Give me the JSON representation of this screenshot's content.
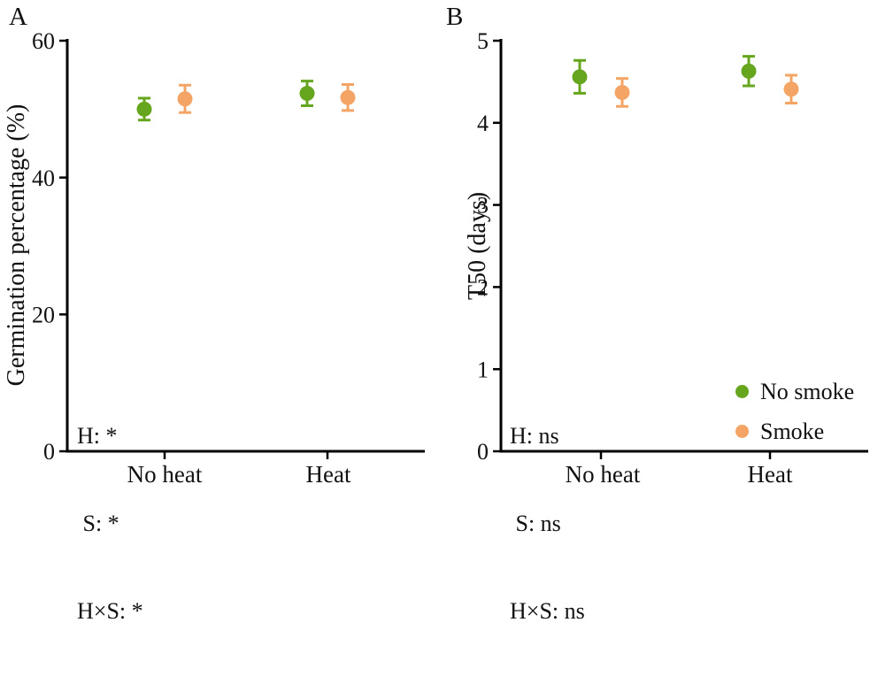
{
  "figure": {
    "panels": [
      {
        "label": "A"
      },
      {
        "label": "B"
      }
    ]
  },
  "colors": {
    "no_smoke": "#66A51E",
    "smoke": "#F4A565",
    "axis": "#000000"
  },
  "legend": {
    "items": [
      {
        "label": "No smoke",
        "color": "#66A51E"
      },
      {
        "label": "Smoke",
        "color": "#F4A565"
      }
    ]
  },
  "chart_data": [
    {
      "panel": "A",
      "type": "scatter",
      "title": "",
      "xlabel": "",
      "ylabel": "Germination percentage (%)",
      "ylim": [
        0,
        60
      ],
      "yticks": [
        0,
        20,
        40,
        60
      ],
      "categories": [
        "No heat",
        "Heat"
      ],
      "series": [
        {
          "name": "No smoke",
          "color": "#66A51E",
          "values": [
            50.0,
            52.3
          ],
          "errors": [
            1.6,
            1.8
          ]
        },
        {
          "name": "Smoke",
          "color": "#F4A565",
          "values": [
            51.5,
            51.7
          ],
          "errors": [
            2.0,
            1.9
          ]
        }
      ],
      "annotations": [
        "H: *",
        " S: *",
        "H×S: *"
      ],
      "grid": false,
      "legend_position": null
    },
    {
      "panel": "B",
      "type": "scatter",
      "title": "",
      "xlabel": "",
      "ylabel": "T50 (days)",
      "ylim": [
        0,
        5
      ],
      "yticks": [
        0,
        1,
        2,
        3,
        4,
        5
      ],
      "categories": [
        "No heat",
        "Heat"
      ],
      "series": [
        {
          "name": "No smoke",
          "color": "#66A51E",
          "values": [
            4.56,
            4.63
          ],
          "errors": [
            0.2,
            0.18
          ]
        },
        {
          "name": "Smoke",
          "color": "#F4A565",
          "values": [
            4.37,
            4.41
          ],
          "errors": [
            0.17,
            0.17
          ]
        }
      ],
      "annotations": [
        "H: ns",
        " S: ns",
        "H×S: ns"
      ],
      "grid": false,
      "legend_position": "bottom-right"
    }
  ]
}
